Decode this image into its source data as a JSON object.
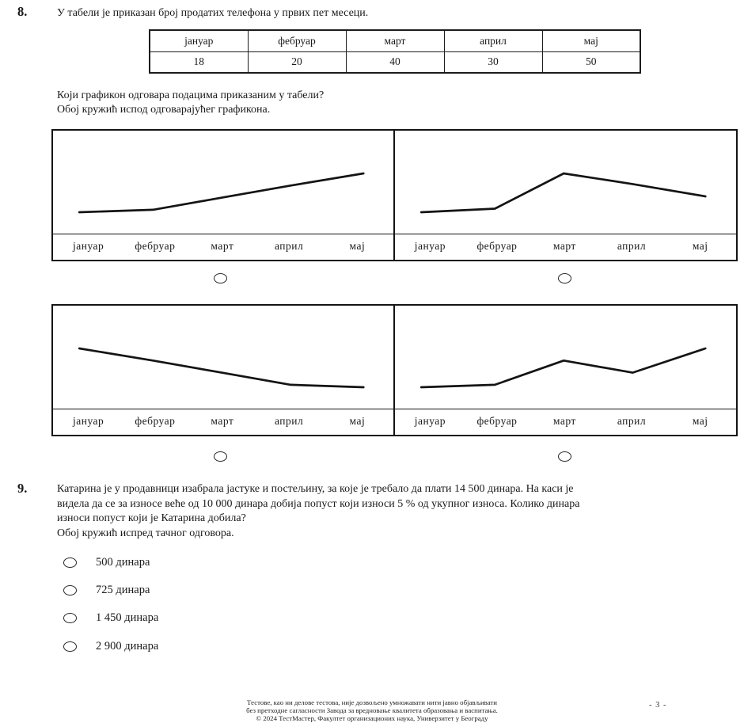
{
  "page": {
    "page_number": "- 3 -"
  },
  "q8": {
    "number": "8.",
    "intro": "У табели је приказан број продатих телефона у првих пет месеци.",
    "question": "Који графикон одговара подацима приказаним у табели?",
    "instruction": "Обој кружић испод одговарајућег графикона.",
    "table": {
      "headers": [
        "јануар",
        "фебруар",
        "март",
        "април",
        "мај"
      ],
      "values": [
        "18",
        "20",
        "40",
        "30",
        "50"
      ]
    }
  },
  "chart_data": [
    {
      "type": "line",
      "position": "top-left",
      "categories": [
        "јануар",
        "фебруар",
        "март",
        "април",
        "мај"
      ],
      "values": [
        18,
        20,
        30,
        40,
        50
      ],
      "shape": "steadily increasing",
      "axes": "no numeric axis shown, month labels only"
    },
    {
      "type": "line",
      "position": "top-right",
      "categories": [
        "јануар",
        "фебруар",
        "март",
        "април",
        "мај"
      ],
      "values": [
        18,
        20,
        40,
        34,
        27
      ],
      "shape": "peak in March then decline",
      "axes": "no numeric axis shown, month labels only"
    },
    {
      "type": "line",
      "position": "bottom-left",
      "categories": [
        "јануар",
        "фебруар",
        "март",
        "април",
        "мај"
      ],
      "values": [
        50,
        40,
        30,
        20,
        18
      ],
      "shape": "steadily decreasing",
      "axes": "no numeric axis shown, month labels only"
    },
    {
      "type": "line",
      "position": "bottom-right",
      "categories": [
        "јануар",
        "фебруар",
        "март",
        "април",
        "мај"
      ],
      "values": [
        18,
        20,
        40,
        30,
        50
      ],
      "shape": "rise to March, dip in April, highest in May (matches table)",
      "axes": "no numeric axis shown, month labels only"
    }
  ],
  "q9": {
    "number": "9.",
    "lines": [
      "Катарина је у продавници изабрала јастуке и постељину, за које је требало да плати 14 500 динара. На каси је",
      "видела да се за износе веће од 10 000 динара добија попуст који износи 5 % од укупног износа. Колико динара",
      "износи попуст који је Катарина добила?"
    ],
    "instruction": "Обој кружић испред тачног одговора.",
    "options": [
      "500 динара",
      "725 динара",
      "1 450 динара",
      "2 900 динара"
    ]
  },
  "footer": {
    "lines": [
      "Тестове, као ни делове тестова, није дозвољено умножавати нити јавно објављивати",
      "без претходне сагласности Завода за вредновање квалитета образовања и васпитања.",
      "© 2024 ТестМастер, Факултет организационих наука, Универзитет у Београду"
    ]
  }
}
